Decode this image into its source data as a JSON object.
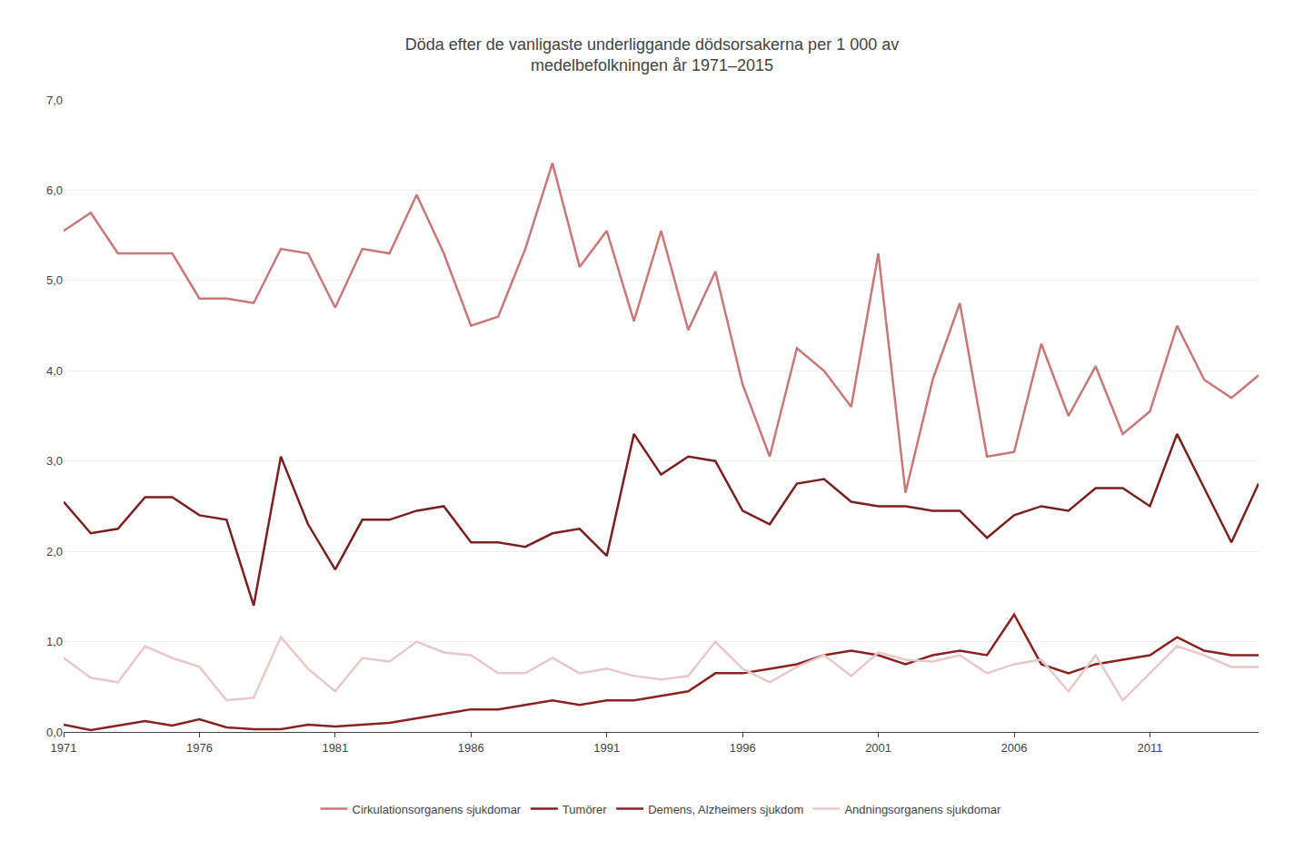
{
  "chart_data": {
    "type": "line",
    "title": "Döda efter de vanligaste underliggande dödsorsakerna per 1 000 av\nmedelbefolkningen år 1971–2015",
    "x": [
      1971,
      1972,
      1973,
      1974,
      1975,
      1976,
      1977,
      1978,
      1979,
      1980,
      1981,
      1982,
      1983,
      1984,
      1985,
      1986,
      1987,
      1988,
      1989,
      1990,
      1991,
      1992,
      1993,
      1994,
      1995,
      1996,
      1997,
      1998,
      1999,
      2000,
      2001,
      2002,
      2003,
      2004,
      2005,
      2006,
      2007,
      2008,
      2009,
      2010,
      2011,
      2012,
      2013,
      2014,
      2015
    ],
    "series": [
      {
        "name": "Cirkulationsorganens sjukdomar",
        "color": "#C87878",
        "values": [
          5.55,
          5.75,
          5.3,
          5.3,
          5.3,
          4.8,
          4.8,
          4.75,
          5.35,
          5.3,
          4.7,
          5.35,
          5.3,
          5.95,
          5.3,
          4.5,
          4.6,
          5.35,
          6.3,
          5.15,
          5.55,
          4.55,
          5.55,
          4.45,
          5.1,
          3.85,
          3.05,
          4.25,
          4.0,
          3.6,
          5.3,
          2.65,
          3.9,
          4.75,
          3.05,
          3.1,
          4.3,
          3.5,
          4.05,
          3.3,
          3.55,
          4.5,
          3.9,
          3.7,
          3.95
        ]
      },
      {
        "name": "Tumörer",
        "color": "#7B2020",
        "values": [
          2.55,
          2.2,
          2.25,
          2.6,
          2.6,
          2.4,
          2.35,
          1.4,
          3.05,
          2.3,
          1.8,
          2.35,
          2.35,
          2.45,
          2.5,
          2.1,
          2.1,
          2.05,
          2.2,
          2.25,
          1.95,
          3.3,
          2.85,
          3.05,
          3.0,
          2.45,
          2.3,
          2.75,
          2.8,
          2.55,
          2.5,
          2.5,
          2.45,
          2.45,
          2.15,
          2.4,
          2.5,
          2.45,
          2.7,
          2.7,
          2.5,
          3.3,
          2.7,
          2.1,
          2.75
        ]
      },
      {
        "name": "Demens, Alzheimers sjukdom",
        "color": "#8B2222",
        "values": [
          0.08,
          0.02,
          0.07,
          0.12,
          0.07,
          0.14,
          0.05,
          0.03,
          0.03,
          0.08,
          0.06,
          0.08,
          0.1,
          0.15,
          0.2,
          0.25,
          0.25,
          0.3,
          0.35,
          0.3,
          0.35,
          0.35,
          0.4,
          0.45,
          0.65,
          0.65,
          0.7,
          0.75,
          0.85,
          0.9,
          0.85,
          0.75,
          0.85,
          0.9,
          0.85,
          1.3,
          0.75,
          0.65,
          0.75,
          0.8,
          0.85,
          1.05,
          0.9,
          0.85,
          0.85
        ]
      },
      {
        "name": "Andningsorganens sjukdomar",
        "color": "#E8C8C8",
        "values": [
          0.82,
          0.6,
          0.55,
          0.95,
          0.82,
          0.72,
          0.35,
          0.38,
          1.05,
          0.7,
          0.45,
          0.82,
          0.78,
          1.0,
          0.88,
          0.85,
          0.65,
          0.65,
          0.82,
          0.65,
          0.7,
          0.62,
          0.58,
          0.62,
          1.0,
          0.7,
          0.55,
          0.72,
          0.85,
          0.62,
          0.88,
          0.8,
          0.78,
          0.85,
          0.65,
          0.75,
          0.8,
          0.45,
          0.85,
          0.35,
          0.65,
          0.95,
          0.85,
          0.72,
          0.72
        ]
      }
    ],
    "xlim": [
      1971,
      2015
    ],
    "xticks": [
      1971,
      1976,
      1981,
      1986,
      1991,
      1996,
      2001,
      2006,
      2011
    ],
    "ylim": [
      0,
      7.0
    ],
    "yticks": [
      {
        "value": 0.0,
        "label": "0,0"
      },
      {
        "value": 1.0,
        "label": "1,0"
      },
      {
        "value": 2.0,
        "label": "2,0"
      },
      {
        "value": 3.0,
        "label": "3,0"
      },
      {
        "value": 4.0,
        "label": "4,0"
      },
      {
        "value": 5.0,
        "label": "5,0"
      },
      {
        "value": 6.0,
        "label": "6,0"
      },
      {
        "value": 7.0,
        "label": "7,0"
      }
    ],
    "grid": true,
    "legend": "bottom"
  }
}
